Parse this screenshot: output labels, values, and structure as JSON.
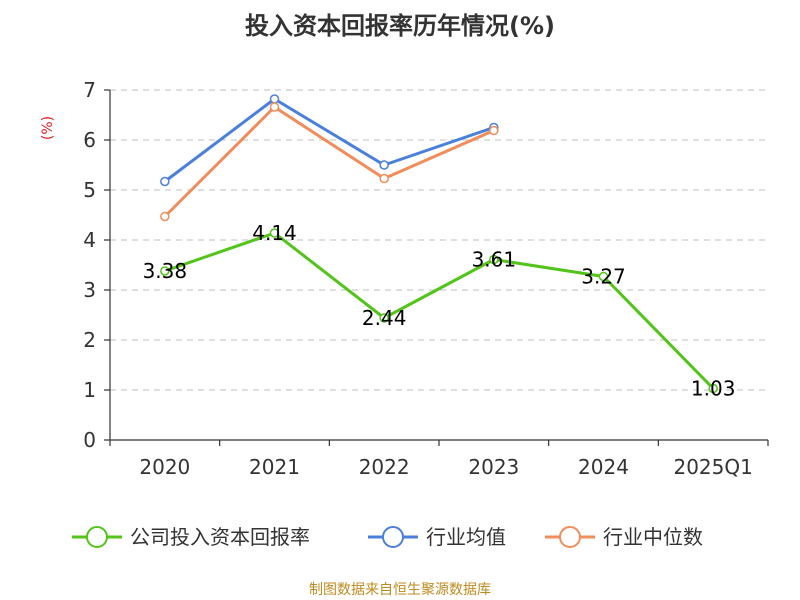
{
  "chart_data": {
    "type": "line",
    "title": "投入资本回报率历年情况(%)",
    "xlabel": "",
    "ylabel": "(%)",
    "categories": [
      "2020",
      "2021",
      "2022",
      "2023",
      "2024",
      "2025Q1"
    ],
    "ylim": [
      0,
      7
    ],
    "yticks": [
      "0",
      "1",
      "2",
      "3",
      "4",
      "5",
      "6",
      "7"
    ],
    "grid": true,
    "legend_position": "bottom",
    "series": [
      {
        "name": "公司投入资本回报率",
        "color": "#52c41a",
        "values": [
          3.38,
          4.14,
          2.44,
          3.61,
          3.27,
          1.03
        ],
        "labels": [
          "3.38",
          "4.14",
          "2.44",
          "3.61",
          "3.27",
          "1.03"
        ]
      },
      {
        "name": "行业均值",
        "color": "#4a7fdc",
        "values": [
          5.17,
          6.82,
          5.5,
          6.25,
          null,
          null
        ]
      },
      {
        "name": "行业中位数",
        "color": "#f28c5a",
        "values": [
          4.47,
          6.66,
          5.23,
          6.19,
          null,
          null
        ]
      }
    ],
    "source": "制图数据来自恒生聚源数据库",
    "ylabel_color": "#e02020",
    "source_color": "#c08a1e"
  }
}
